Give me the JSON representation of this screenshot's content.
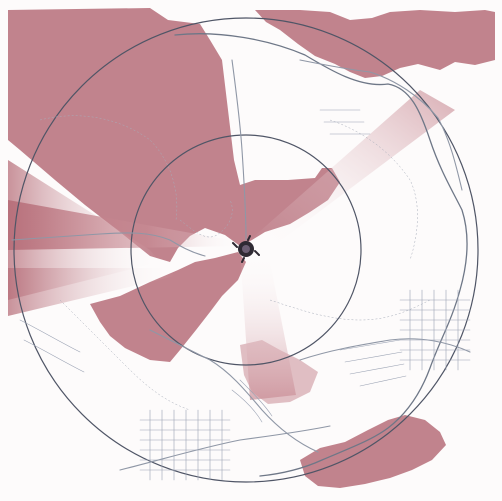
{
  "map": {
    "title": "",
    "colors": {
      "visible_area": "#b76f7a",
      "visible_area_soft": "#c98c95",
      "background": "#fdfbfb",
      "roads": "#8f97a6",
      "range_rings": "#4f5566",
      "observer": "#2f2a33"
    },
    "layers": [
      "viewshed-area",
      "radial-shadow-beams",
      "range-rings",
      "road-network",
      "settlement-streets",
      "observer-point"
    ],
    "range_ring_count": 3,
    "observer_icon": "observer-point-icon"
  }
}
